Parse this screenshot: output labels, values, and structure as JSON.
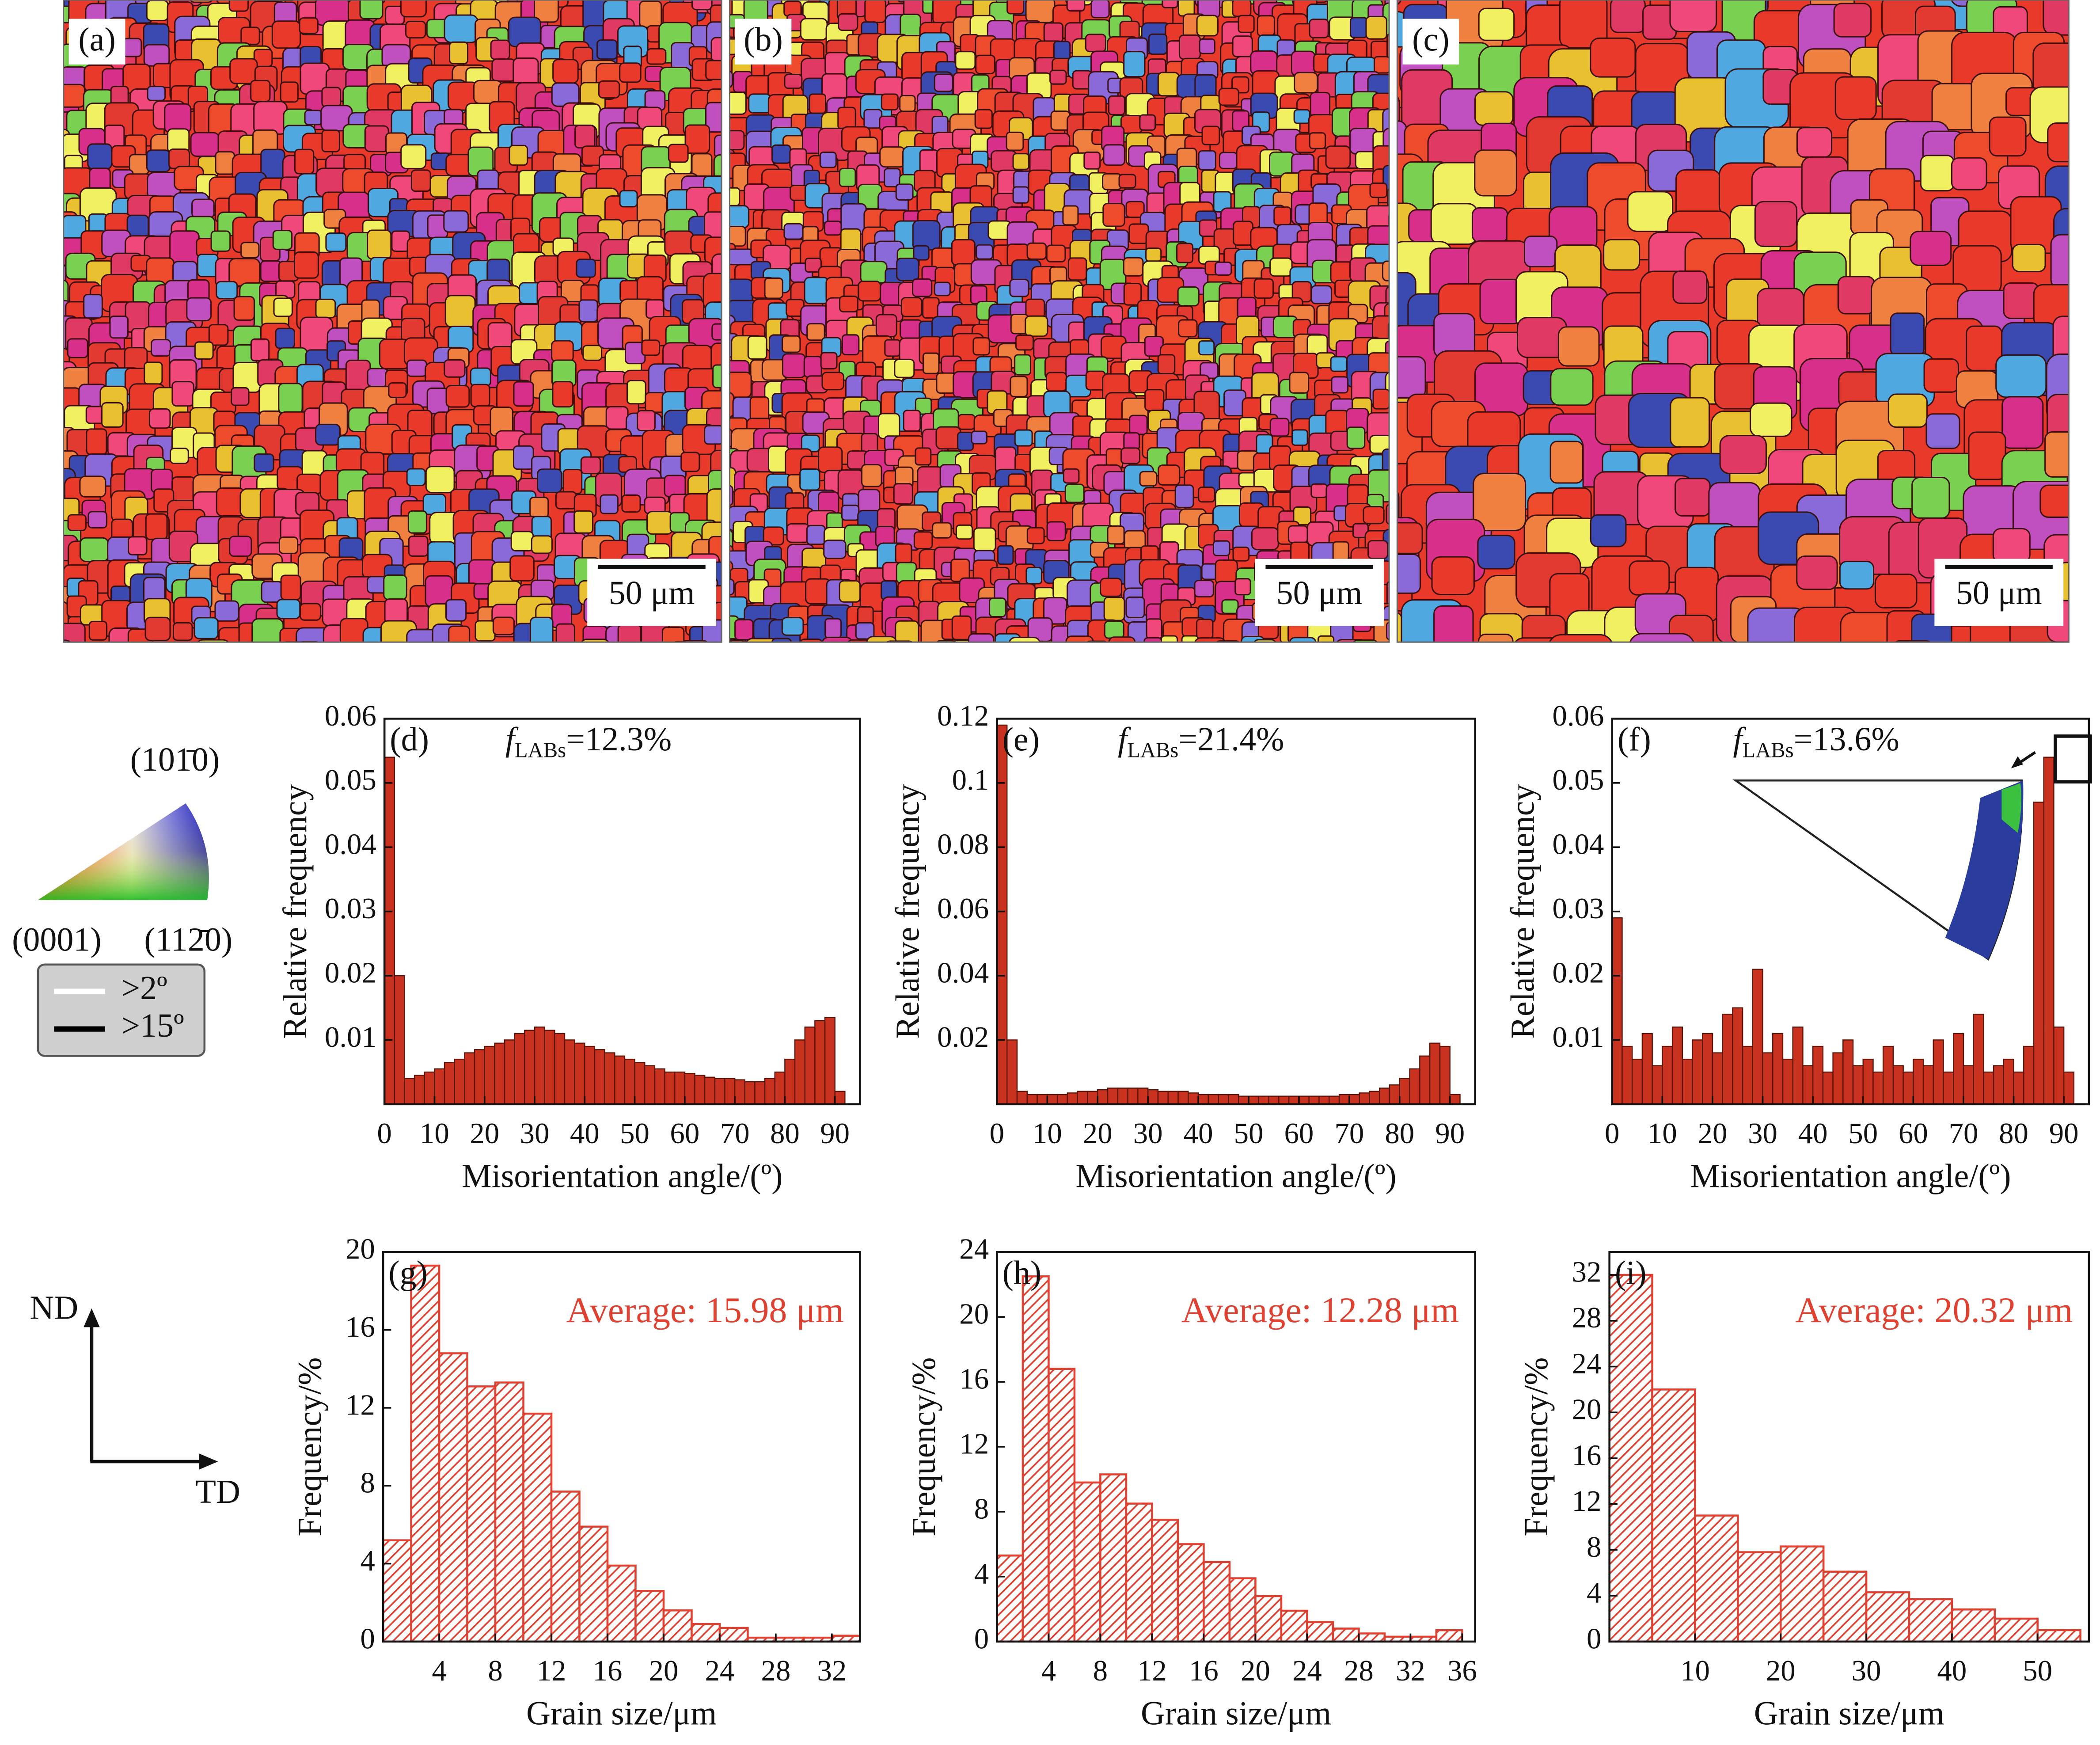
{
  "maps": [
    {
      "label": "(a)",
      "scale_bar": "50 μm"
    },
    {
      "label": "(b)",
      "scale_bar": "50 μm"
    },
    {
      "label": "(c)",
      "scale_bar": "50 μm"
    }
  ],
  "ipf_legend": {
    "top": "(101̄0)",
    "left": "(0001)",
    "right": "(112̄0)"
  },
  "boundary_legend": {
    "low": ">2º",
    "high": ">15º"
  },
  "axes_legend": {
    "vertical": "ND",
    "horizontal": "TD"
  },
  "chart_data": [
    {
      "type": "histogram",
      "title": "(d)",
      "xlabel": "Misorientation angle/(º)",
      "ylabel": "Relative frequency",
      "annotation": {
        "symbol": "f",
        "subscript": "LABs",
        "text": "=12.3%"
      },
      "color": "#c8321f",
      "edge": "#5a1408",
      "bins": [
        0,
        2,
        4,
        6,
        8,
        10,
        12,
        14,
        16,
        18,
        20,
        22,
        24,
        26,
        28,
        30,
        32,
        34,
        36,
        38,
        40,
        42,
        44,
        46,
        48,
        50,
        52,
        54,
        56,
        58,
        60,
        62,
        64,
        66,
        68,
        70,
        72,
        74,
        76,
        78,
        80,
        82,
        84,
        86,
        88,
        90,
        92
      ],
      "values": [
        0.054,
        0.02,
        0.004,
        0.0045,
        0.005,
        0.0055,
        0.0065,
        0.007,
        0.008,
        0.0085,
        0.009,
        0.0095,
        0.01,
        0.011,
        0.0115,
        0.012,
        0.0115,
        0.011,
        0.01,
        0.0095,
        0.009,
        0.0085,
        0.008,
        0.0075,
        0.007,
        0.0065,
        0.006,
        0.0055,
        0.005,
        0.005,
        0.0048,
        0.0045,
        0.0042,
        0.004,
        0.004,
        0.0038,
        0.0035,
        0.0035,
        0.004,
        0.005,
        0.007,
        0.01,
        0.012,
        0.013,
        0.0135,
        0.002
      ],
      "xlim": [
        0,
        95
      ],
      "xticks": [
        0,
        10,
        20,
        30,
        40,
        50,
        60,
        70,
        80,
        90
      ],
      "ylim": [
        0,
        0.06
      ],
      "yticks": [
        0.01,
        0.02,
        0.03,
        0.04,
        0.05,
        0.06
      ]
    },
    {
      "type": "histogram",
      "title": "(e)",
      "xlabel": "Misorientation angle/(º)",
      "ylabel": "Relative frequency",
      "annotation": {
        "symbol": "f",
        "subscript": "LABs",
        "text": "=21.4%"
      },
      "color": "#c8321f",
      "edge": "#5a1408",
      "bins": [
        0,
        2,
        4,
        6,
        8,
        10,
        12,
        14,
        16,
        18,
        20,
        22,
        24,
        26,
        28,
        30,
        32,
        34,
        36,
        38,
        40,
        42,
        44,
        46,
        48,
        50,
        52,
        54,
        56,
        58,
        60,
        62,
        64,
        66,
        68,
        70,
        72,
        74,
        76,
        78,
        80,
        82,
        84,
        86,
        88,
        90,
        92
      ],
      "values": [
        0.118,
        0.02,
        0.004,
        0.003,
        0.003,
        0.003,
        0.003,
        0.0035,
        0.004,
        0.004,
        0.0045,
        0.005,
        0.005,
        0.005,
        0.005,
        0.0045,
        0.004,
        0.004,
        0.004,
        0.0035,
        0.003,
        0.003,
        0.003,
        0.003,
        0.0025,
        0.0025,
        0.0025,
        0.0025,
        0.0025,
        0.0025,
        0.0025,
        0.0025,
        0.0025,
        0.0025,
        0.003,
        0.003,
        0.0035,
        0.004,
        0.005,
        0.006,
        0.008,
        0.011,
        0.015,
        0.019,
        0.018,
        0.003
      ],
      "xlim": [
        0,
        95
      ],
      "xticks": [
        0,
        10,
        20,
        30,
        40,
        50,
        60,
        70,
        80,
        90
      ],
      "ylim": [
        0,
        0.12
      ],
      "yticks": [
        0.02,
        0.04,
        0.06,
        0.08,
        0.1,
        0.12
      ]
    },
    {
      "type": "histogram",
      "title": "(f)",
      "xlabel": "Misorientation angle/(º)",
      "ylabel": "Relative frequency",
      "annotation": {
        "symbol": "f",
        "subscript": "LABs",
        "text": "=13.6%"
      },
      "color": "#c8321f",
      "edge": "#5a1408",
      "bins": [
        0,
        2,
        4,
        6,
        8,
        10,
        12,
        14,
        16,
        18,
        20,
        22,
        24,
        26,
        28,
        30,
        32,
        34,
        36,
        38,
        40,
        42,
        44,
        46,
        48,
        50,
        52,
        54,
        56,
        58,
        60,
        62,
        64,
        66,
        68,
        70,
        72,
        74,
        76,
        78,
        80,
        82,
        84,
        86,
        88,
        90,
        92
      ],
      "values": [
        0.029,
        0.009,
        0.007,
        0.011,
        0.006,
        0.009,
        0.012,
        0.007,
        0.01,
        0.011,
        0.008,
        0.014,
        0.015,
        0.009,
        0.021,
        0.008,
        0.011,
        0.007,
        0.012,
        0.006,
        0.009,
        0.005,
        0.008,
        0.01,
        0.006,
        0.007,
        0.005,
        0.009,
        0.006,
        0.005,
        0.007,
        0.006,
        0.01,
        0.005,
        0.011,
        0.006,
        0.014,
        0.005,
        0.006,
        0.007,
        0.005,
        0.009,
        0.047,
        0.054,
        0.012,
        0.005
      ],
      "xlim": [
        0,
        95
      ],
      "xticks": [
        0,
        10,
        20,
        30,
        40,
        50,
        60,
        70,
        80,
        90
      ],
      "ylim": [
        0,
        0.06
      ],
      "yticks": [
        0.01,
        0.02,
        0.03,
        0.04,
        0.05,
        0.06
      ]
    },
    {
      "type": "hatched-histogram",
      "title": "(g)",
      "xlabel": "Grain size/μm",
      "ylabel": "Frequency/%",
      "annotation": {
        "text": "Average: 15.98 μm"
      },
      "color": "#e0402f",
      "bins": [
        0,
        2,
        4,
        6,
        8,
        10,
        12,
        14,
        16,
        18,
        20,
        22,
        24,
        26,
        28,
        30,
        32,
        34
      ],
      "values": [
        5.2,
        19.3,
        14.8,
        13.1,
        13.3,
        11.7,
        7.7,
        5.9,
        3.9,
        2.6,
        1.6,
        0.9,
        0.7,
        0.2,
        0.2,
        0.2,
        0.3
      ],
      "xlim": [
        0,
        34
      ],
      "xticks": [
        4,
        8,
        12,
        16,
        20,
        24,
        28,
        32
      ],
      "ylim": [
        0,
        20
      ],
      "yticks": [
        0,
        4,
        8,
        12,
        16,
        20
      ]
    },
    {
      "type": "hatched-histogram",
      "title": "(h)",
      "xlabel": "Grain size/μm",
      "ylabel": "Frequency/%",
      "annotation": {
        "text": "Average: 12.28 μm"
      },
      "color": "#e0402f",
      "bins": [
        0,
        2,
        4,
        6,
        8,
        10,
        12,
        14,
        16,
        18,
        20,
        22,
        24,
        26,
        28,
        30,
        32,
        34,
        36
      ],
      "values": [
        5.3,
        22.5,
        16.8,
        9.8,
        10.3,
        8.5,
        7.5,
        6.0,
        4.9,
        3.9,
        2.8,
        1.9,
        1.2,
        0.8,
        0.5,
        0.3,
        0.3,
        0.7
      ],
      "xlim": [
        0,
        37
      ],
      "xticks": [
        4,
        8,
        12,
        16,
        20,
        24,
        28,
        32,
        36
      ],
      "ylim": [
        0,
        24
      ],
      "yticks": [
        0,
        4,
        8,
        12,
        16,
        20,
        24
      ]
    },
    {
      "type": "hatched-histogram",
      "title": "(i)",
      "xlabel": "Grain size/μm",
      "ylabel": "Frequency/%",
      "annotation": {
        "text": "Average: 20.32 μm"
      },
      "color": "#e0402f",
      "bins": [
        0,
        5,
        10,
        15,
        20,
        25,
        30,
        35,
        40,
        45,
        50,
        55
      ],
      "values": [
        32,
        22,
        11,
        7.8,
        8.3,
        6.1,
        4.3,
        3.7,
        2.8,
        2.0,
        1.0
      ],
      "xlim": [
        0,
        56
      ],
      "xticks": [
        10,
        20,
        30,
        40,
        50
      ],
      "ylim": [
        0,
        34
      ],
      "yticks": [
        0,
        4,
        8,
        12,
        16,
        20,
        24,
        28,
        32
      ]
    }
  ]
}
